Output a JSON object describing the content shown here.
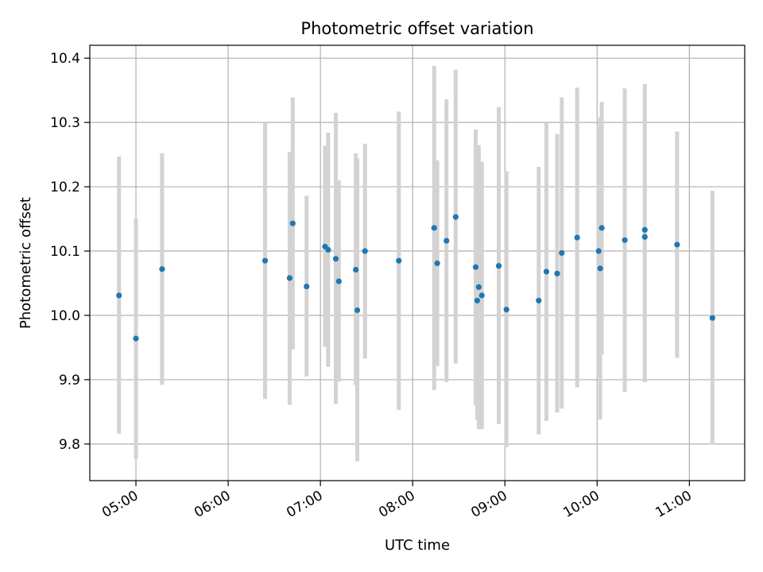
{
  "chart_data": {
    "type": "scatter",
    "title": "Photometric offset variation",
    "xlabel": "UTC time",
    "ylabel": "Photometric offset",
    "x_ticks": [
      "05:00",
      "06:00",
      "07:00",
      "08:00",
      "09:00",
      "10:00",
      "11:00"
    ],
    "y_ticks": [
      "9.8",
      "9.9",
      "10.0",
      "10.1",
      "10.2",
      "10.3",
      "10.4"
    ],
    "xlim": [
      "04:30",
      "11:36"
    ],
    "ylim": [
      9.743,
      10.42
    ],
    "grid": true,
    "marker_color": "#1f77b4",
    "errorbar_color": "#d3d3d3",
    "series": [
      {
        "points": [
          {
            "x": "04:49",
            "y": 10.031,
            "yerr_low": 9.816,
            "yerr_high": 10.247
          },
          {
            "x": "05:00",
            "y": 9.964,
            "yerr_low": 9.777,
            "yerr_high": 10.151
          },
          {
            "x": "05:17",
            "y": 10.072,
            "yerr_low": 9.892,
            "yerr_high": 10.252
          },
          {
            "x": "06:24",
            "y": 10.085,
            "yerr_low": 9.87,
            "yerr_high": 10.3
          },
          {
            "x": "06:40",
            "y": 10.058,
            "yerr_low": 9.861,
            "yerr_high": 10.254
          },
          {
            "x": "06:42",
            "y": 10.143,
            "yerr_low": 9.947,
            "yerr_high": 10.339
          },
          {
            "x": "06:51",
            "y": 10.045,
            "yerr_low": 9.905,
            "yerr_high": 10.186
          },
          {
            "x": "07:03",
            "y": 10.107,
            "yerr_low": 9.951,
            "yerr_high": 10.264
          },
          {
            "x": "07:05",
            "y": 10.102,
            "yerr_low": 9.92,
            "yerr_high": 10.284
          },
          {
            "x": "07:10",
            "y": 10.088,
            "yerr_low": 9.862,
            "yerr_high": 10.315
          },
          {
            "x": "07:12",
            "y": 10.053,
            "yerr_low": 9.897,
            "yerr_high": 10.21
          },
          {
            "x": "07:23",
            "y": 10.071,
            "yerr_low": 9.892,
            "yerr_high": 10.252
          },
          {
            "x": "07:24",
            "y": 10.008,
            "yerr_low": 9.773,
            "yerr_high": 10.244
          },
          {
            "x": "07:29",
            "y": 10.1,
            "yerr_low": 9.933,
            "yerr_high": 10.267
          },
          {
            "x": "07:51",
            "y": 10.085,
            "yerr_low": 9.853,
            "yerr_high": 10.317
          },
          {
            "x": "08:14",
            "y": 10.136,
            "yerr_low": 9.884,
            "yerr_high": 10.388
          },
          {
            "x": "08:16",
            "y": 10.081,
            "yerr_low": 9.921,
            "yerr_high": 10.241
          },
          {
            "x": "08:22",
            "y": 10.116,
            "yerr_low": 9.896,
            "yerr_high": 10.336
          },
          {
            "x": "08:28",
            "y": 10.153,
            "yerr_low": 9.925,
            "yerr_high": 10.382
          },
          {
            "x": "08:41",
            "y": 10.075,
            "yerr_low": 9.86,
            "yerr_high": 10.289
          },
          {
            "x": "08:42",
            "y": 10.023,
            "yerr_low": 9.838,
            "yerr_high": 10.209
          },
          {
            "x": "08:43",
            "y": 10.044,
            "yerr_low": 9.823,
            "yerr_high": 10.265
          },
          {
            "x": "08:45",
            "y": 10.031,
            "yerr_low": 9.823,
            "yerr_high": 10.239
          },
          {
            "x": "08:56",
            "y": 10.077,
            "yerr_low": 9.831,
            "yerr_high": 10.324
          },
          {
            "x": "09:01",
            "y": 10.009,
            "yerr_low": 9.795,
            "yerr_high": 10.224
          },
          {
            "x": "09:22",
            "y": 10.023,
            "yerr_low": 9.815,
            "yerr_high": 10.231
          },
          {
            "x": "09:27",
            "y": 10.068,
            "yerr_low": 9.836,
            "yerr_high": 10.299
          },
          {
            "x": "09:34",
            "y": 10.065,
            "yerr_low": 9.849,
            "yerr_high": 10.282
          },
          {
            "x": "09:37",
            "y": 10.097,
            "yerr_low": 9.855,
            "yerr_high": 10.339
          },
          {
            "x": "09:47",
            "y": 10.121,
            "yerr_low": 9.888,
            "yerr_high": 10.354
          },
          {
            "x": "10:01",
            "y": 10.1,
            "yerr_low": 9.905,
            "yerr_high": 10.295
          },
          {
            "x": "10:02",
            "y": 10.073,
            "yerr_low": 9.838,
            "yerr_high": 10.308
          },
          {
            "x": "10:03",
            "y": 10.136,
            "yerr_low": 9.939,
            "yerr_high": 10.332
          },
          {
            "x": "10:18",
            "y": 10.117,
            "yerr_low": 9.881,
            "yerr_high": 10.353
          },
          {
            "x": "10:31",
            "y": 10.122,
            "yerr_low": 9.896,
            "yerr_high": 10.348
          },
          {
            "x": "10:31",
            "y": 10.133,
            "yerr_low": 9.906,
            "yerr_high": 10.36
          },
          {
            "x": "10:52",
            "y": 10.11,
            "yerr_low": 9.934,
            "yerr_high": 10.286
          },
          {
            "x": "11:15",
            "y": 9.996,
            "yerr_low": 9.799,
            "yerr_high": 10.194
          }
        ]
      }
    ]
  }
}
